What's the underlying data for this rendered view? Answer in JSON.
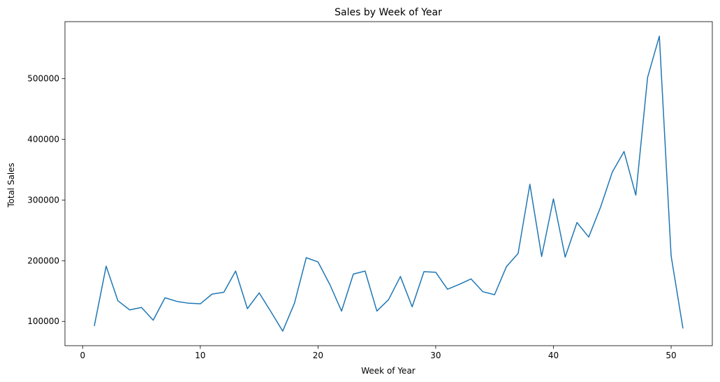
{
  "chart_data": {
    "type": "line",
    "title": "Sales by Week of Year",
    "xlabel": "Week of Year",
    "ylabel": "Total Sales",
    "xlim": [
      -1.5,
      53.5
    ],
    "ylim": [
      60000,
      594000
    ],
    "xticks": [
      0,
      10,
      20,
      30,
      40,
      50
    ],
    "yticks": [
      100000,
      200000,
      300000,
      400000,
      500000
    ],
    "grid": false,
    "series": [
      {
        "color": "#1f77b4",
        "x": [
          1,
          2,
          3,
          4,
          5,
          6,
          7,
          8,
          9,
          10,
          11,
          12,
          13,
          14,
          15,
          16,
          17,
          18,
          19,
          20,
          21,
          22,
          23,
          24,
          25,
          26,
          27,
          28,
          29,
          30,
          31,
          32,
          33,
          34,
          35,
          36,
          37,
          38,
          39,
          40,
          41,
          42,
          43,
          44,
          45,
          46,
          47,
          48,
          49,
          50,
          51
        ],
        "y": [
          93000,
          191000,
          134000,
          119000,
          123000,
          102000,
          139000,
          133000,
          130000,
          129000,
          145000,
          148000,
          183000,
          121000,
          147000,
          116000,
          84000,
          130000,
          205000,
          198000,
          161000,
          117000,
          178000,
          183000,
          117000,
          136000,
          174000,
          124000,
          182000,
          181000,
          153000,
          161000,
          170000,
          149000,
          144000,
          190000,
          212000,
          326000,
          207000,
          302000,
          206000,
          263000,
          239000,
          288000,
          346000,
          380000,
          308000,
          502000,
          570000,
          208000,
          89000
        ]
      }
    ]
  }
}
